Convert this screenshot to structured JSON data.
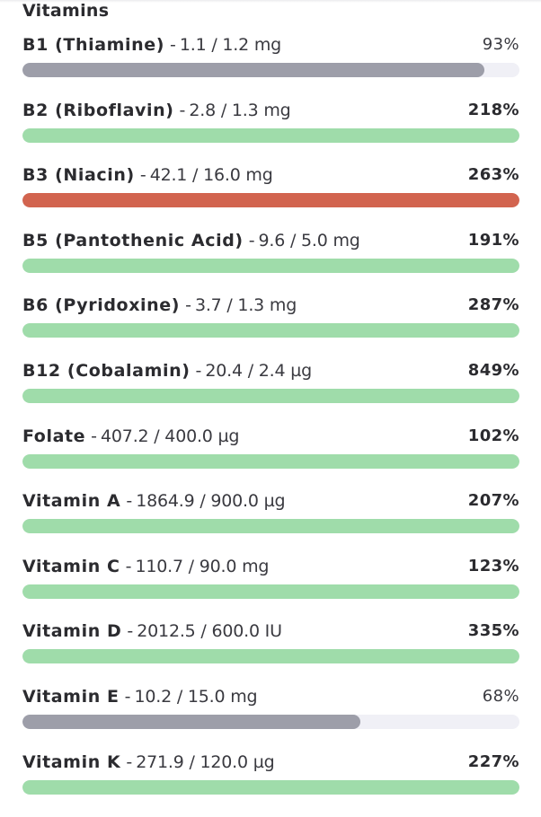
{
  "section": {
    "title": "Vitamins"
  },
  "separator": "-",
  "colors": {
    "under": "#9d9ea9",
    "good": "#9fdcaa",
    "high": "#d2644f",
    "track": "#f0f0f6"
  },
  "vitamins": [
    {
      "name": "B1 (Thiamine)",
      "amount": "1.1 / 1.2 mg",
      "percent": "93%",
      "fill_fraction": 0.93,
      "status": "under"
    },
    {
      "name": "B2 (Riboflavin)",
      "amount": "2.8 / 1.3 mg",
      "percent": "218%",
      "fill_fraction": 1.0,
      "status": "good"
    },
    {
      "name": "B3 (Niacin)",
      "amount": "42.1 / 16.0 mg",
      "percent": "263%",
      "fill_fraction": 1.0,
      "status": "high"
    },
    {
      "name": "B5 (Pantothenic Acid)",
      "amount": "9.6 / 5.0 mg",
      "percent": "191%",
      "fill_fraction": 1.0,
      "status": "good"
    },
    {
      "name": "B6 (Pyridoxine)",
      "amount": "3.7 / 1.3 mg",
      "percent": "287%",
      "fill_fraction": 1.0,
      "status": "good"
    },
    {
      "name": "B12 (Cobalamin)",
      "amount": "20.4 / 2.4 µg",
      "percent": "849%",
      "fill_fraction": 1.0,
      "status": "good"
    },
    {
      "name": "Folate",
      "amount": "407.2 / 400.0 µg",
      "percent": "102%",
      "fill_fraction": 1.0,
      "status": "good"
    },
    {
      "name": "Vitamin A",
      "amount": "1864.9 / 900.0 µg",
      "percent": "207%",
      "fill_fraction": 1.0,
      "status": "good"
    },
    {
      "name": "Vitamin C",
      "amount": "110.7 / 90.0 mg",
      "percent": "123%",
      "fill_fraction": 1.0,
      "status": "good"
    },
    {
      "name": "Vitamin D",
      "amount": "2012.5 / 600.0 IU",
      "percent": "335%",
      "fill_fraction": 1.0,
      "status": "good"
    },
    {
      "name": "Vitamin E",
      "amount": "10.2 / 15.0 mg",
      "percent": "68%",
      "fill_fraction": 0.68,
      "status": "under"
    },
    {
      "name": "Vitamin K",
      "amount": "271.9 / 120.0 µg",
      "percent": "227%",
      "fill_fraction": 1.0,
      "status": "good"
    }
  ]
}
